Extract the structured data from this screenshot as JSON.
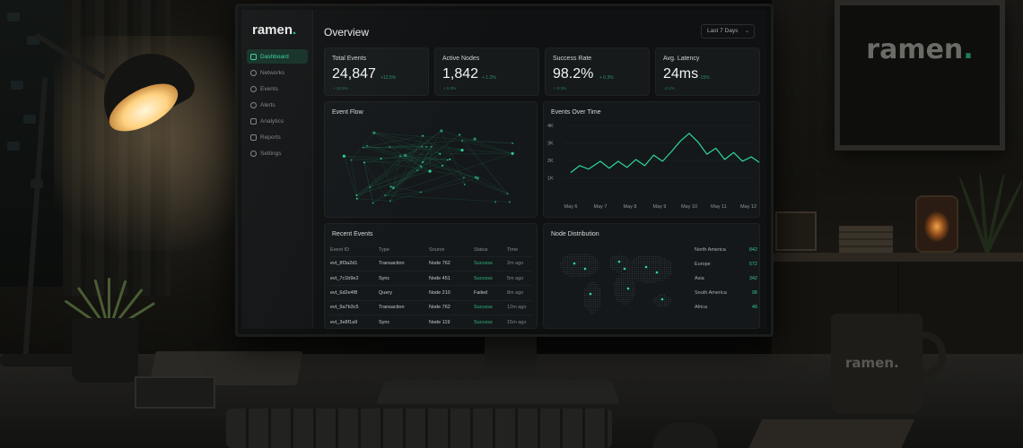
{
  "poster": {
    "brand": "ramen",
    "dot": "."
  },
  "mug": {
    "brand": "ramen."
  },
  "app": {
    "brand": "ramen",
    "brand_dot": ".",
    "accent": "#25c28a",
    "page_title": "Overview",
    "date_range": "Last 7 Days"
  },
  "sidebar": {
    "items": [
      {
        "label": "Dashboard",
        "icon": "dashboard-icon",
        "active": true
      },
      {
        "label": "Networks",
        "icon": "network-icon",
        "active": false
      },
      {
        "label": "Events",
        "icon": "events-icon",
        "active": false
      },
      {
        "label": "Alerts",
        "icon": "bell-icon",
        "active": false
      },
      {
        "label": "Analytics",
        "icon": "analytics-icon",
        "active": false
      },
      {
        "label": "Reports",
        "icon": "reports-icon",
        "active": false
      },
      {
        "label": "Settings",
        "icon": "gear-icon",
        "active": false
      }
    ]
  },
  "kpis": [
    {
      "label": "Total Events",
      "value": "24,847",
      "delta": "+12.5%",
      "sub": "+ 12.5%"
    },
    {
      "label": "Active Nodes",
      "value": "1,842",
      "delta": "+ 1.2%",
      "sub": "+ 5.3%"
    },
    {
      "label": "Success Rate",
      "value": "98.2%",
      "delta": "+ 0.3%",
      "sub": "+ 0.3%"
    },
    {
      "label": "Avg. Latency",
      "value": "24ms",
      "delta": "-15%",
      "sub": "-2.1%"
    }
  ],
  "panels": {
    "flow_title": "Event Flow",
    "time_title": "Events Over Time",
    "events_title": "Recent Events",
    "nodes_title": "Node Distribution"
  },
  "chart_data": {
    "type": "line",
    "title": "Events Over Time",
    "x": [
      "May 6",
      "May 7",
      "May 8",
      "May 9",
      "May 10",
      "May 11",
      "May 12"
    ],
    "yticks": [
      "1K",
      "2K",
      "3K",
      "4K"
    ],
    "ylim": [
      0,
      4000
    ],
    "grid": true,
    "series": [
      {
        "points": [
          [
            0,
            1300
          ],
          [
            0.3,
            1700
          ],
          [
            0.6,
            1500
          ],
          [
            1,
            1950
          ],
          [
            1.3,
            1550
          ],
          [
            1.6,
            1950
          ],
          [
            1.9,
            1600
          ],
          [
            2.2,
            2050
          ],
          [
            2.5,
            1700
          ],
          [
            2.8,
            2300
          ],
          [
            3.1,
            1950
          ],
          [
            3.4,
            2500
          ],
          [
            3.7,
            3100
          ],
          [
            4,
            3550
          ],
          [
            4.3,
            3050
          ],
          [
            4.6,
            2350
          ],
          [
            4.9,
            2700
          ],
          [
            5.2,
            2050
          ],
          [
            5.5,
            2450
          ],
          [
            5.8,
            1950
          ],
          [
            6.1,
            2200
          ],
          [
            6.4,
            1850
          ],
          [
            6.7,
            2300
          ],
          [
            6.9,
            2750
          ]
        ]
      }
    ]
  },
  "events_table": {
    "columns": [
      "Event ID",
      "Type",
      "Source",
      "Status",
      "Time"
    ],
    "rows": [
      [
        "evt_8f3a2d1",
        "Transaction",
        "Node 762",
        "Success",
        "2m ago"
      ],
      [
        "evt_7c1b9e2",
        "Sync",
        "Node 451",
        "Success",
        "5m ago"
      ],
      [
        "evt_6d2e4f8",
        "Query",
        "Node 210",
        "Failed",
        "8m ago"
      ],
      [
        "evt_9a7b3c5",
        "Transaction",
        "Node 762",
        "Success",
        "12m ago"
      ],
      [
        "evt_3e8f1a9",
        "Sync",
        "Node 119",
        "Success",
        "15m ago"
      ]
    ]
  },
  "regions": [
    {
      "name": "North America",
      "count": "842"
    },
    {
      "name": "Europe",
      "count": "572"
    },
    {
      "name": "Asia",
      "count": "342"
    },
    {
      "name": "South America",
      "count": "98"
    },
    {
      "name": "Africa",
      "count": "48"
    }
  ]
}
